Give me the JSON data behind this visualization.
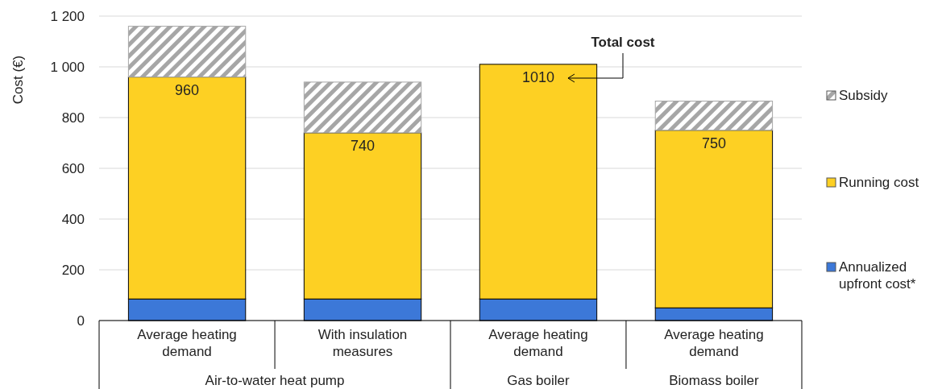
{
  "chart_data": {
    "type": "bar",
    "stacked": true,
    "ylabel": "Cost (€)",
    "categories": [
      "Average heating demand",
      "With insulation measures",
      "Average heating demand",
      "Average heating demand"
    ],
    "series": [
      {
        "name": "Annualized upfront cost*",
        "color": "#3c78d8",
        "values": [
          85,
          85,
          85,
          50
        ]
      },
      {
        "name": "Running cost",
        "color": "#fdd023",
        "values": [
          875,
          655,
          925,
          700
        ]
      },
      {
        "name": "Subsidy",
        "color": "#a6a6a6",
        "values": [
          200,
          200,
          null,
          115
        ]
      }
    ],
    "ylim": [
      0,
      1200
    ],
    "yticks": [
      0,
      200,
      400,
      600,
      800,
      {
        "value": 1000,
        "label": "1 000"
      },
      {
        "value": 1200,
        "label": "1 200"
      }
    ],
    "grid": "y",
    "legend": "right",
    "annotations": [
      "960",
      "740",
      "1010",
      "750",
      "Total cost",
      "Air-to-water heat pump",
      "Gas boiler",
      "Biomass boiler"
    ]
  }
}
